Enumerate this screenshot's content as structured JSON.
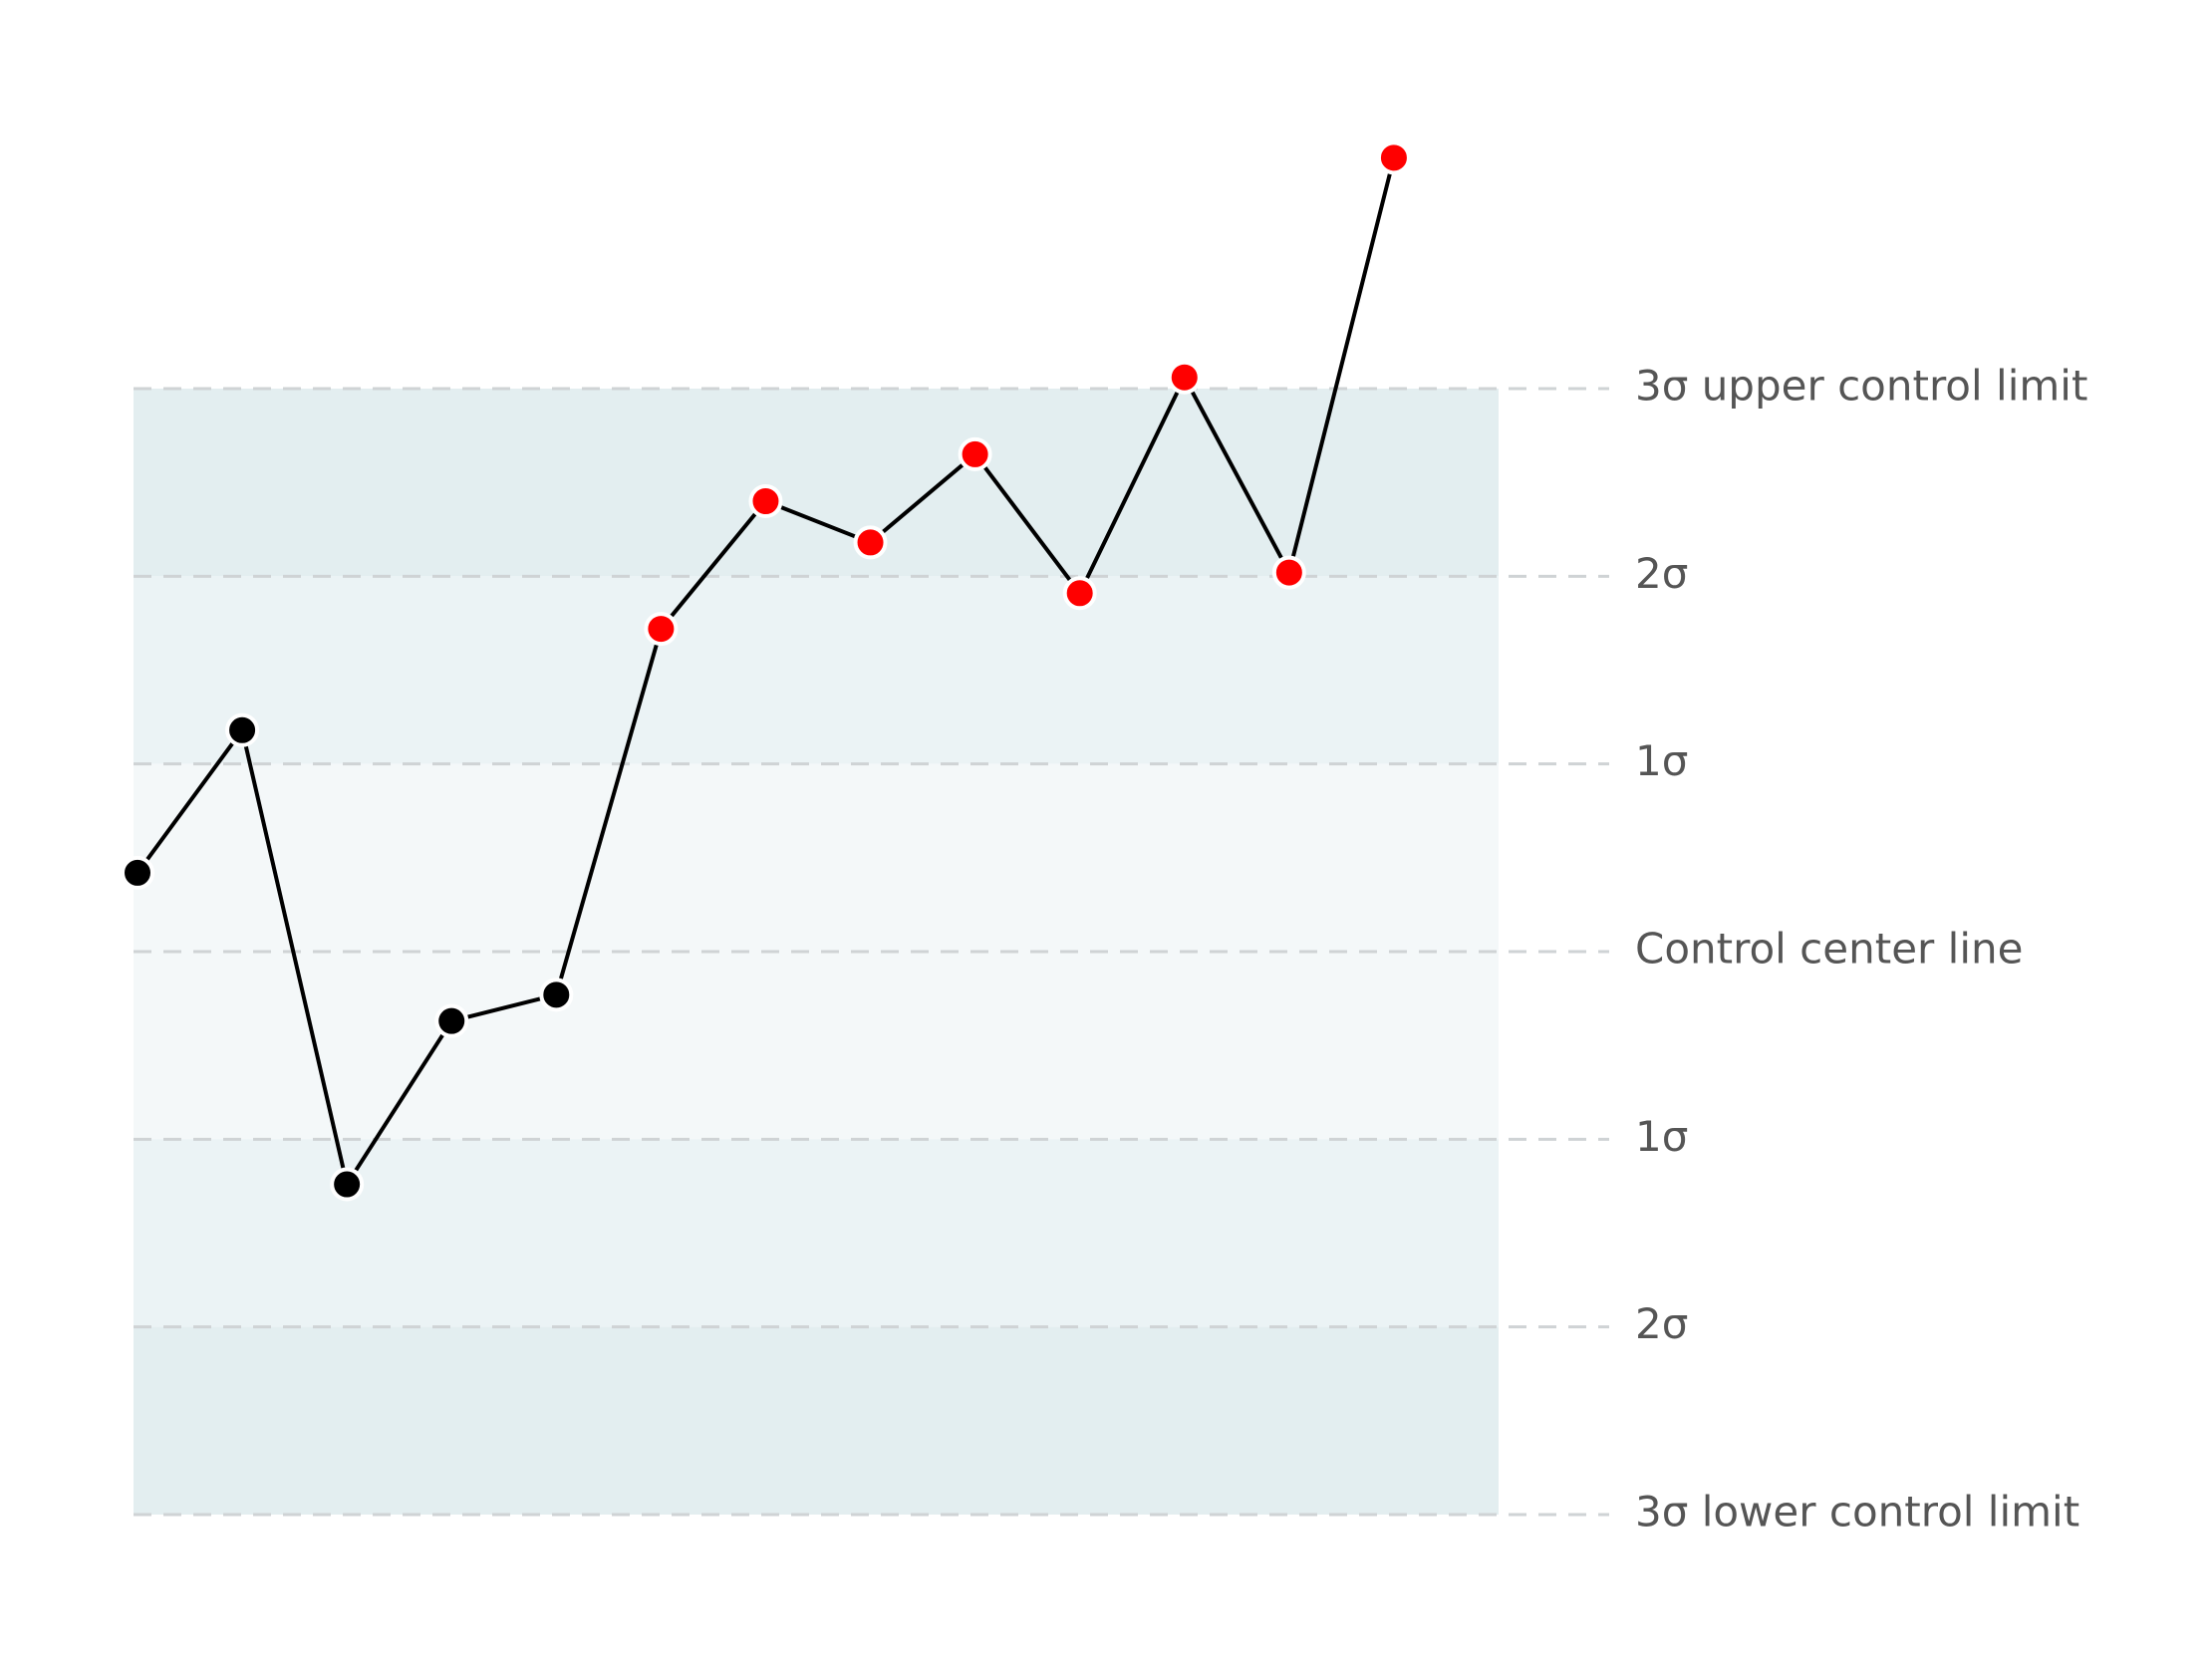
{
  "chart_data": {
    "type": "line",
    "x": [
      1,
      2,
      3,
      4,
      5,
      6,
      7,
      8,
      9,
      10,
      11,
      12,
      13
    ],
    "series": [
      {
        "color": "#000000",
        "values": [
          0.42,
          1.18,
          -1.24,
          -0.37,
          -0.23,
          1.72,
          2.4,
          2.18,
          2.65,
          1.91,
          3.06,
          2.02,
          4.23
        ],
        "colors": [
          "#000000",
          "#000000",
          "#000000",
          "#000000",
          "#000000",
          "#ff0000",
          "#ff0000",
          "#ff0000",
          "#ff0000",
          "#ff0000",
          "#ff0000",
          "#ff0000",
          "#ff0000"
        ]
      }
    ],
    "xlim": [
      1,
      14
    ],
    "ylim": [
      -3,
      3
    ],
    "yticks": [
      {
        "value": 3,
        "label": "3σ upper control limit"
      },
      {
        "value": 2,
        "label": "2σ"
      },
      {
        "value": 1,
        "label": "1σ"
      },
      {
        "value": 0,
        "label": "Control center line"
      },
      {
        "value": -1,
        "label": "1σ"
      },
      {
        "value": -2,
        "label": "2σ"
      },
      {
        "value": -3,
        "label": "3σ lower control limit"
      }
    ],
    "grid": true
  }
}
